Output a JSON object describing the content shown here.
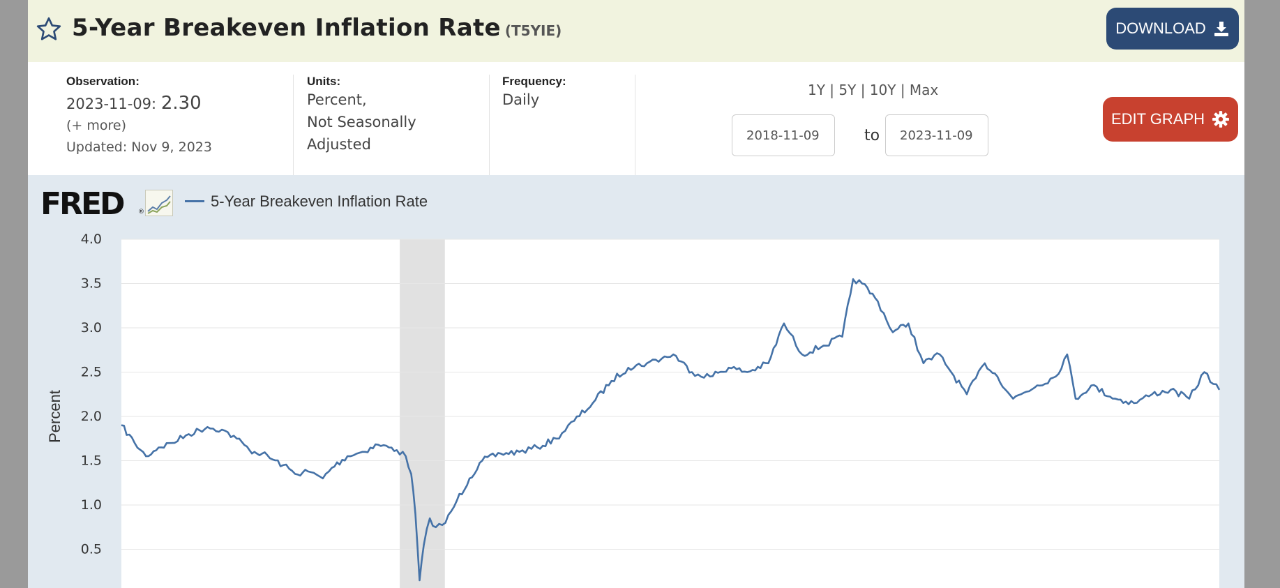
{
  "header": {
    "title": "5-Year Breakeven Inflation Rate",
    "series_id": "(T5YIE)",
    "download_label": "DOWNLOAD"
  },
  "meta": {
    "observation_label": "Observation:",
    "observation_date": "2023-11-09",
    "observation_value": "2.30",
    "more_label": "(+ more)",
    "updated_label": "Updated: Nov 9, 2023",
    "units_label": "Units:",
    "units_lines": [
      "Percent,",
      "Not Seasonally",
      "Adjusted"
    ],
    "frequency_label": "Frequency:",
    "frequency_value": "Daily",
    "ranges_text": "1Y | 5Y | 10Y | Max",
    "range_start": "2018-11-09",
    "to_label": "to",
    "range_end": "2023-11-09",
    "edit_label": "EDIT GRAPH"
  },
  "graph": {
    "logo_text": "FRED",
    "logo_reg": "®",
    "legend": "5-Year Breakeven Inflation Rate",
    "line_color": "#4572a7"
  },
  "chart_data": {
    "type": "line",
    "ylabel": "Percent",
    "ylim": [
      0,
      4.0
    ],
    "yticks": [
      0.5,
      1.0,
      1.5,
      2.0,
      2.5,
      3.0,
      3.5,
      4.0
    ],
    "xlim": [
      "2018-11-09",
      "2023-11-09"
    ],
    "grid": true,
    "recession_shading": {
      "start": "2020-02-15",
      "end": "2020-04-30"
    },
    "series": [
      {
        "name": "5-Year Breakeven Inflation Rate",
        "x": [
          "2018-11-09",
          "2018-12-01",
          "2018-12-20",
          "2019-01-10",
          "2019-02-01",
          "2019-03-01",
          "2019-04-01",
          "2019-04-25",
          "2019-05-20",
          "2019-06-10",
          "2019-07-01",
          "2019-08-05",
          "2019-08-25",
          "2019-09-15",
          "2019-10-10",
          "2019-10-25",
          "2019-11-20",
          "2019-12-15",
          "2020-01-10",
          "2020-01-28",
          "2020-02-10",
          "2020-02-25",
          "2020-03-05",
          "2020-03-12",
          "2020-03-19",
          "2020-03-26",
          "2020-04-05",
          "2020-04-15",
          "2020-05-01",
          "2020-05-20",
          "2020-06-10",
          "2020-07-01",
          "2020-08-01",
          "2020-09-01",
          "2020-10-01",
          "2020-11-01",
          "2020-12-01",
          "2021-01-01",
          "2021-02-01",
          "2021-03-01",
          "2021-04-01",
          "2021-05-15",
          "2021-06-15",
          "2021-07-15",
          "2021-08-15",
          "2021-09-15",
          "2021-10-20",
          "2021-11-15",
          "2021-12-15",
          "2022-01-20",
          "2022-02-20",
          "2022-03-10",
          "2022-03-25",
          "2022-04-20",
          "2022-05-15",
          "2022-06-10",
          "2022-07-05",
          "2022-08-01",
          "2022-08-20",
          "2022-09-15",
          "2022-10-15",
          "2022-11-05",
          "2022-12-01",
          "2023-01-10",
          "2023-02-10",
          "2023-03-01",
          "2023-03-15",
          "2023-04-10",
          "2023-05-20",
          "2023-06-20",
          "2023-07-20",
          "2023-08-20",
          "2023-09-20",
          "2023-10-15",
          "2023-11-09"
        ],
        "values": [
          1.9,
          1.7,
          1.55,
          1.65,
          1.7,
          1.8,
          1.88,
          1.85,
          1.75,
          1.62,
          1.58,
          1.45,
          1.35,
          1.38,
          1.3,
          1.42,
          1.55,
          1.6,
          1.68,
          1.65,
          1.62,
          1.55,
          1.35,
          0.9,
          0.15,
          0.55,
          0.85,
          0.75,
          0.8,
          1.05,
          1.3,
          1.5,
          1.58,
          1.6,
          1.65,
          1.75,
          1.95,
          2.15,
          2.4,
          2.55,
          2.6,
          2.7,
          2.5,
          2.45,
          2.55,
          2.5,
          2.6,
          3.05,
          2.7,
          2.8,
          2.9,
          3.55,
          3.5,
          3.3,
          2.95,
          3.05,
          2.6,
          2.7,
          2.5,
          2.25,
          2.6,
          2.45,
          2.2,
          2.35,
          2.45,
          2.7,
          2.2,
          2.35,
          2.2,
          2.15,
          2.25,
          2.3,
          2.2,
          2.5,
          2.3
        ]
      }
    ]
  }
}
